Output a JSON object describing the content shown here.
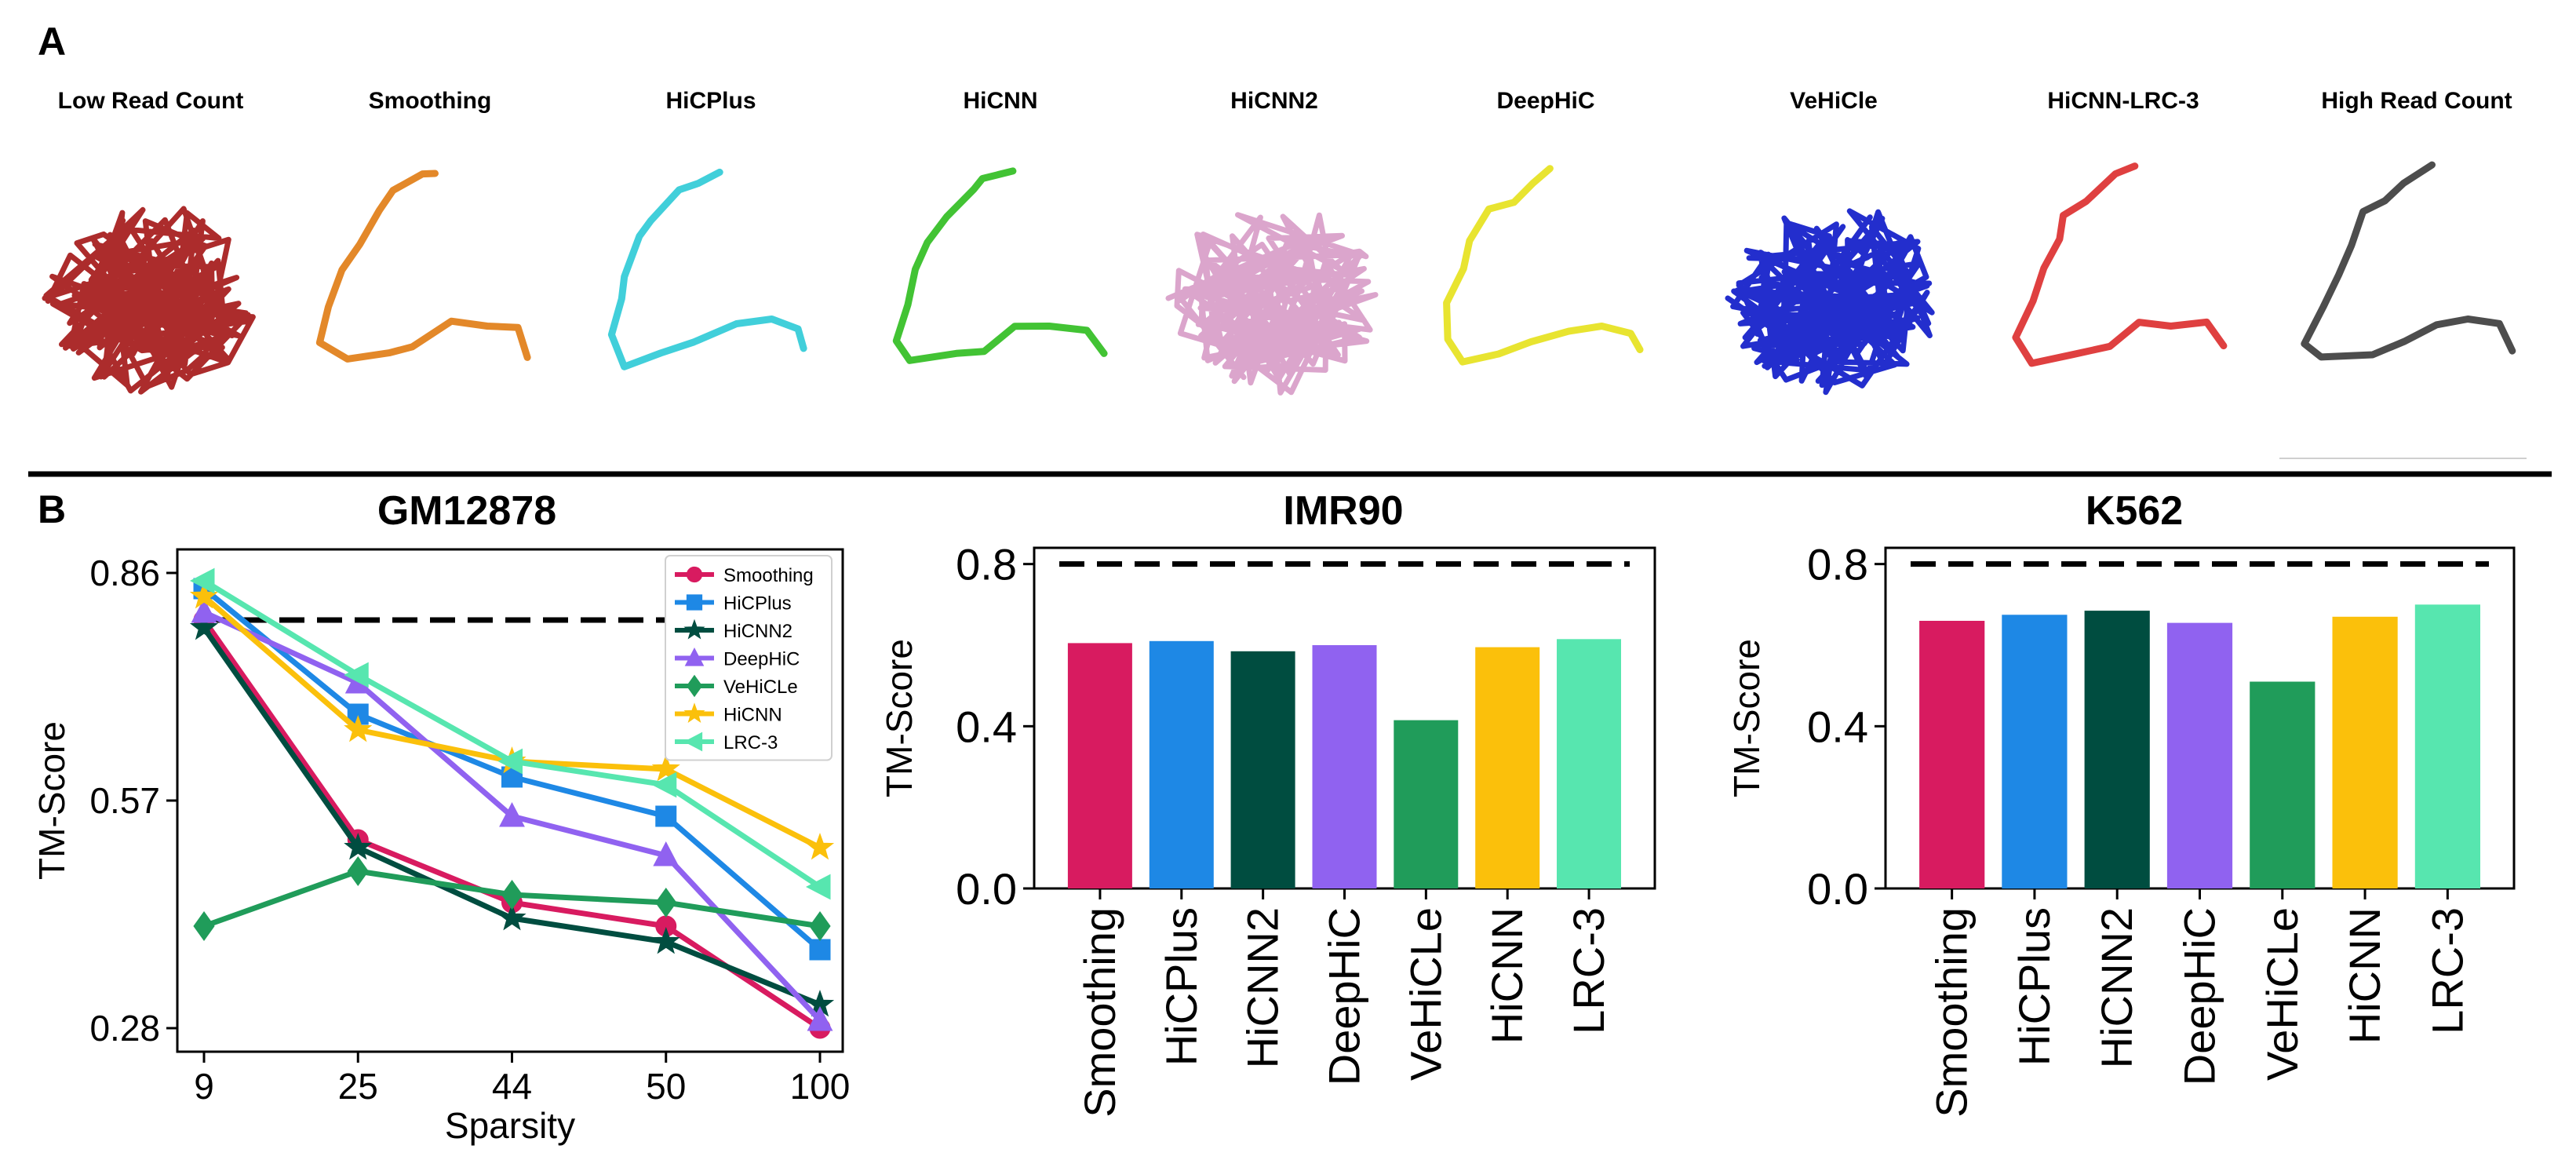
{
  "panel_labels": {
    "a": "A",
    "b": "B"
  },
  "structures": [
    {
      "label": "Low Read Count",
      "color": "#a31515",
      "style": "tangled"
    },
    {
      "label": "Smoothing",
      "color": "#e07b12",
      "style": "path"
    },
    {
      "label": "HiCPlus",
      "color": "#2ccad6",
      "style": "path"
    },
    {
      "label": "HiCNN",
      "color": "#2ebd1e",
      "style": "path"
    },
    {
      "label": "HiCNN2",
      "color": "#d79bc6",
      "style": "tangled"
    },
    {
      "label": "DeepHiC",
      "color": "#e6e11a",
      "style": "path"
    },
    {
      "label": "VeHiCle",
      "color": "#0b17c8",
      "style": "tangled"
    },
    {
      "label": "HiCNN-LRC-3",
      "color": "#dc2b2b",
      "style": "path"
    },
    {
      "label": "High Read Count",
      "color": "#3a3a3a",
      "style": "path"
    }
  ],
  "chart_data": [
    {
      "type": "line",
      "title": "GM12878",
      "xlabel": "Sparsity",
      "ylabel": "TM-Score",
      "categories": [
        "9",
        "25",
        "44",
        "50",
        "100"
      ],
      "yticks": [
        "0.86",
        "0.57",
        "0.28"
      ],
      "ylim": [
        0.28,
        0.86
      ],
      "reference_line": 0.8,
      "legend_position": "top-right",
      "series": [
        {
          "name": "Smoothing",
          "color": "#d81b60",
          "marker": "circle",
          "values": [
            0.8,
            0.52,
            0.44,
            0.41,
            0.28
          ]
        },
        {
          "name": "HiCPlus",
          "color": "#1e88e5",
          "marker": "square",
          "values": [
            0.84,
            0.68,
            0.6,
            0.55,
            0.38
          ]
        },
        {
          "name": "HiCNN2",
          "color": "#004d40",
          "marker": "star",
          "values": [
            0.79,
            0.51,
            0.42,
            0.39,
            0.31
          ]
        },
        {
          "name": "DeepHiC",
          "color": "#9062f0",
          "marker": "triangle-up",
          "values": [
            0.81,
            0.72,
            0.55,
            0.5,
            0.29
          ]
        },
        {
          "name": "VeHiCLe",
          "color": "#209c5a",
          "marker": "diamond",
          "values": [
            0.41,
            0.48,
            0.45,
            0.44,
            0.41
          ]
        },
        {
          "name": "HiCNN",
          "color": "#fbc00b",
          "marker": "star",
          "values": [
            0.83,
            0.66,
            0.62,
            0.61,
            0.51
          ]
        },
        {
          "name": "LRC-3",
          "color": "#57e6af",
          "marker": "triangle-left",
          "values": [
            0.85,
            0.73,
            0.62,
            0.59,
            0.46
          ]
        }
      ]
    },
    {
      "type": "bar",
      "title": "IMR90",
      "ylabel": "TM-Score",
      "categories": [
        "Smoothing",
        "HiCPlus",
        "HiCNN2",
        "DeepHiC",
        "VeHiCLe",
        "HiCNN",
        "LRC-3"
      ],
      "colors": [
        "#d81b60",
        "#1e88e5",
        "#004d40",
        "#9062f0",
        "#209c5a",
        "#fbc00b",
        "#57e6af"
      ],
      "values": [
        0.605,
        0.61,
        0.585,
        0.6,
        0.415,
        0.595,
        0.615
      ],
      "yticks": [
        "0.0",
        "0.4",
        "0.8"
      ],
      "ylim": [
        0,
        0.84
      ],
      "reference_line": 0.8
    },
    {
      "type": "bar",
      "title": "K562",
      "ylabel": "TM-Score",
      "categories": [
        "Smoothing",
        "HiCPlus",
        "HiCNN2",
        "DeepHiC",
        "VeHiCLe",
        "HiCNN",
        "LRC-3"
      ],
      "colors": [
        "#d81b60",
        "#1e88e5",
        "#004d40",
        "#9062f0",
        "#209c5a",
        "#fbc00b",
        "#57e6af"
      ],
      "values": [
        0.66,
        0.675,
        0.685,
        0.655,
        0.51,
        0.67,
        0.7
      ],
      "yticks": [
        "0.0",
        "0.4",
        "0.8"
      ],
      "ylim": [
        0,
        0.84
      ],
      "reference_line": 0.8
    }
  ]
}
